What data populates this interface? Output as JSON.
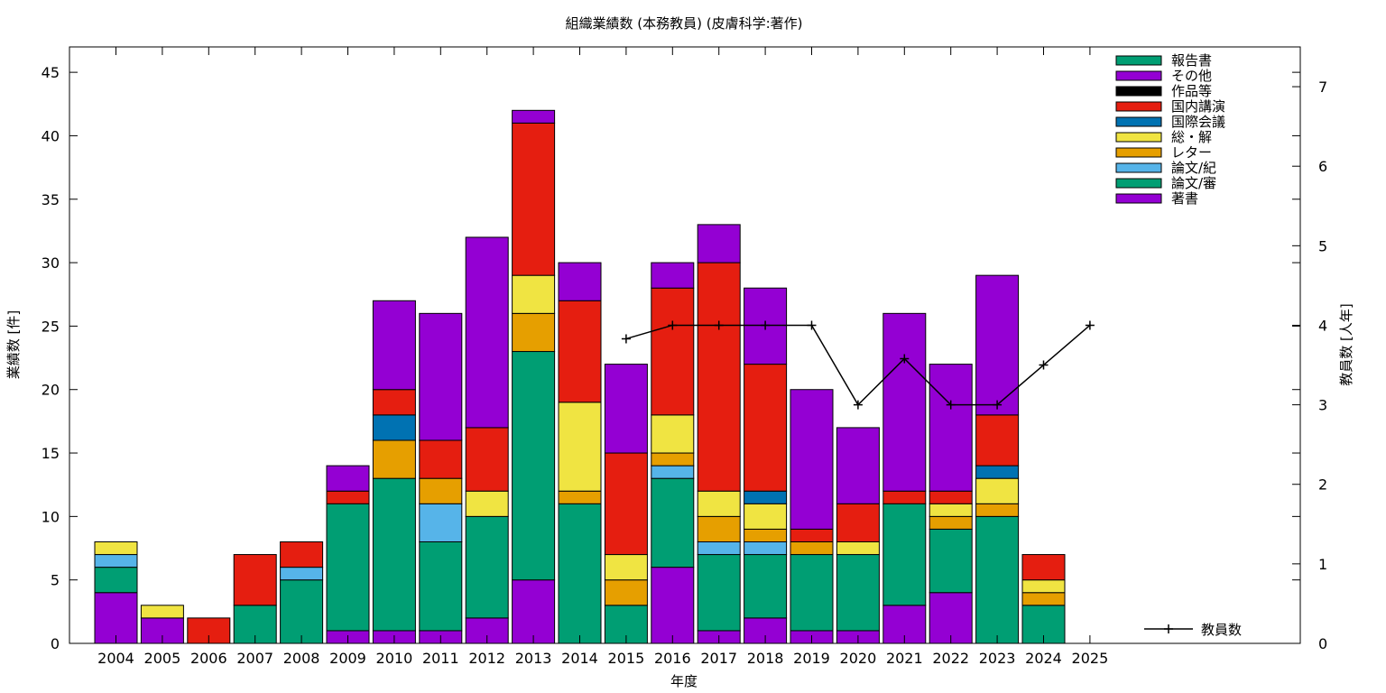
{
  "chart_data": {
    "type": "bar",
    "stacked": true,
    "title": "組織業績数 (本務教員) (皮膚科学:著作)",
    "xlabel": "年度",
    "ylabel": "業績数 [件]",
    "y2label": "教員数 [人年]",
    "ylim": [
      0,
      47
    ],
    "y2lim": [
      0,
      7.5
    ],
    "yticks": [
      0,
      5,
      10,
      15,
      20,
      25,
      30,
      35,
      40,
      45
    ],
    "y2ticks": [
      0,
      1,
      2,
      3,
      4,
      5,
      6,
      7
    ],
    "grid": false,
    "legend_position": "top-right",
    "categories": [
      "2004",
      "2005",
      "2006",
      "2007",
      "2008",
      "2009",
      "2010",
      "2011",
      "2012",
      "2013",
      "2014",
      "2015",
      "2016",
      "2017",
      "2018",
      "2019",
      "2020",
      "2021",
      "2022",
      "2023",
      "2024",
      "2025"
    ],
    "series": [
      {
        "name": "著書",
        "color": "#9400d3",
        "values": [
          4,
          2,
          0,
          0,
          0,
          1,
          1,
          1,
          2,
          5,
          0,
          0,
          6,
          1,
          2,
          1,
          1,
          3,
          4,
          0,
          0,
          0
        ]
      },
      {
        "name": "論文/審",
        "color": "#009e73",
        "values": [
          2,
          0,
          0,
          3,
          5,
          10,
          12,
          7,
          8,
          18,
          11,
          3,
          7,
          6,
          5,
          6,
          6,
          8,
          5,
          10,
          3,
          0
        ]
      },
      {
        "name": "論文/紀",
        "color": "#56b4e9",
        "values": [
          1,
          0,
          0,
          0,
          1,
          0,
          0,
          3,
          0,
          0,
          0,
          0,
          1,
          1,
          1,
          0,
          0,
          0,
          0,
          0,
          0,
          0
        ]
      },
      {
        "name": "レター",
        "color": "#e69f00",
        "values": [
          0,
          0,
          0,
          0,
          0,
          0,
          3,
          2,
          0,
          3,
          1,
          2,
          1,
          2,
          1,
          1,
          0,
          0,
          1,
          1,
          1,
          0
        ]
      },
      {
        "name": "総・解",
        "color": "#f0e442",
        "values": [
          1,
          1,
          0,
          0,
          0,
          0,
          0,
          0,
          2,
          3,
          7,
          2,
          3,
          2,
          2,
          0,
          1,
          0,
          1,
          2,
          1,
          0
        ]
      },
      {
        "name": "国際会議",
        "color": "#0072b2",
        "values": [
          0,
          0,
          0,
          0,
          0,
          0,
          2,
          0,
          0,
          0,
          0,
          0,
          0,
          0,
          1,
          0,
          0,
          0,
          0,
          1,
          0,
          0
        ]
      },
      {
        "name": "国内講演",
        "color": "#e51e10",
        "values": [
          0,
          0,
          2,
          4,
          2,
          1,
          2,
          3,
          5,
          12,
          8,
          8,
          10,
          18,
          10,
          1,
          3,
          1,
          1,
          4,
          2,
          0
        ]
      },
      {
        "name": "作品等",
        "color": "#000000",
        "values": [
          0,
          0,
          0,
          0,
          0,
          0,
          0,
          0,
          0,
          0,
          0,
          0,
          0,
          0,
          0,
          0,
          0,
          0,
          0,
          0,
          0,
          0
        ]
      },
      {
        "name": "その他",
        "color": "#9400d3",
        "values": [
          0,
          0,
          0,
          0,
          0,
          2,
          7,
          10,
          15,
          1,
          3,
          7,
          2,
          3,
          6,
          11,
          6,
          14,
          10,
          11,
          0,
          0
        ]
      },
      {
        "name": "報告書",
        "color": "#009e73",
        "values": [
          0,
          0,
          0,
          0,
          0,
          0,
          0,
          0,
          0,
          0,
          0,
          0,
          0,
          0,
          0,
          0,
          0,
          0,
          0,
          0,
          0,
          0
        ]
      }
    ],
    "line_series": {
      "name": "教員数",
      "color": "#000000",
      "x": [
        "2015",
        "2016",
        "2017",
        "2018",
        "2019",
        "2020",
        "2021",
        "2022",
        "2023",
        "2024",
        "2025"
      ],
      "values": [
        3.83,
        4,
        4,
        4,
        4,
        3,
        3.58,
        3,
        3,
        3.5,
        4
      ]
    },
    "legend_order": [
      "報告書",
      "その他",
      "作品等",
      "国内講演",
      "国際会議",
      "総・解",
      "レター",
      "論文/紀",
      "論文/審",
      "著書"
    ]
  }
}
